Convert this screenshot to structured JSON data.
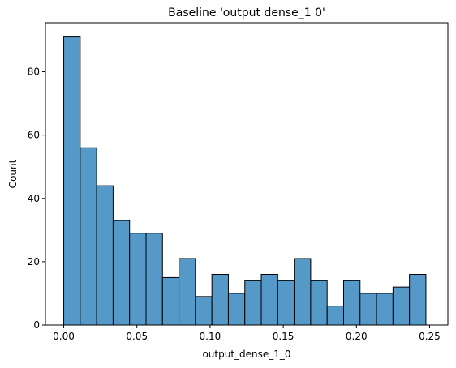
{
  "chart_data": {
    "type": "bar",
    "title": "Baseline 'output dense_1 0'",
    "xlabel": "output_dense_1_0",
    "ylabel": "Count",
    "xlim": [
      -0.0125,
      0.2625
    ],
    "ylim": [
      0,
      95.5
    ],
    "bin_width": 0.01125,
    "bin_start": 0.0,
    "values": [
      91,
      56,
      44,
      33,
      29,
      29,
      15,
      21,
      9,
      16,
      10,
      14,
      16,
      14,
      21,
      14,
      6,
      14,
      10,
      10,
      12,
      16
    ],
    "x_ticks": [
      0.0,
      0.05,
      0.1,
      0.15,
      0.2,
      0.25
    ],
    "x_tick_labels": [
      "0.00",
      "0.05",
      "0.10",
      "0.15",
      "0.20",
      "0.25"
    ],
    "y_ticks": [
      0,
      20,
      40,
      60,
      80
    ],
    "y_tick_labels": [
      "0",
      "20",
      "40",
      "60",
      "80"
    ],
    "bar_color": "#5499c7",
    "edge_color": "#000000",
    "grid": false,
    "legend": "none"
  }
}
